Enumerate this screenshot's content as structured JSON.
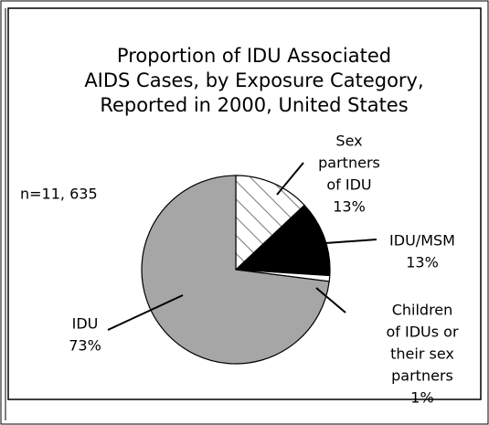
{
  "chart_data": {
    "type": "pie",
    "title": [
      "Proportion of IDU Associated",
      "AIDS Cases, by Exposure Category,",
      "Reported in 2000, United States"
    ],
    "annotation": "n=11, 635",
    "categories": [
      [
        "Sex",
        "partners",
        "of IDU"
      ],
      [
        "IDU/MSM"
      ],
      [
        "Children",
        "of IDUs or",
        "their sex",
        "partners"
      ],
      [
        "IDU"
      ]
    ],
    "values": [
      13,
      13,
      1,
      73
    ],
    "value_labels": [
      "13%",
      "13%",
      "1%",
      "73%"
    ],
    "colors": [
      "#ffffff",
      "#000000",
      "#ffffff",
      "#a6a6a6"
    ],
    "patterns": [
      "hatch",
      null,
      null,
      null
    ]
  }
}
